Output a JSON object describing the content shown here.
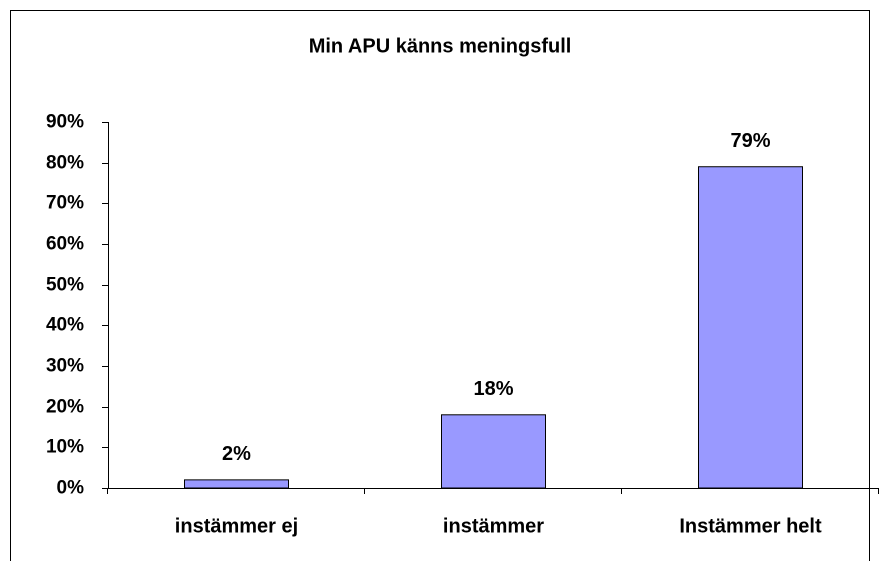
{
  "chart_data": {
    "type": "bar",
    "title": "Min APU känns meningsfull",
    "categories": [
      "instämmer ej",
      "instämmer",
      "Instämmer helt"
    ],
    "values": [
      2,
      18,
      79
    ],
    "value_labels": [
      "2%",
      "18%",
      "79%"
    ],
    "color": "#9999ff",
    "ylim": [
      0,
      90
    ],
    "yticks": [
      {
        "value": 0,
        "label": "0%"
      },
      {
        "value": 10,
        "label": "10%"
      },
      {
        "value": 20,
        "label": "20%"
      },
      {
        "value": 30,
        "label": "30%"
      },
      {
        "value": 40,
        "label": "40%"
      },
      {
        "value": 50,
        "label": "50%"
      },
      {
        "value": 60,
        "label": "60%"
      },
      {
        "value": 70,
        "label": "70%"
      },
      {
        "value": 80,
        "label": "80%"
      },
      {
        "value": 90,
        "label": "90%"
      }
    ],
    "grid": false
  }
}
